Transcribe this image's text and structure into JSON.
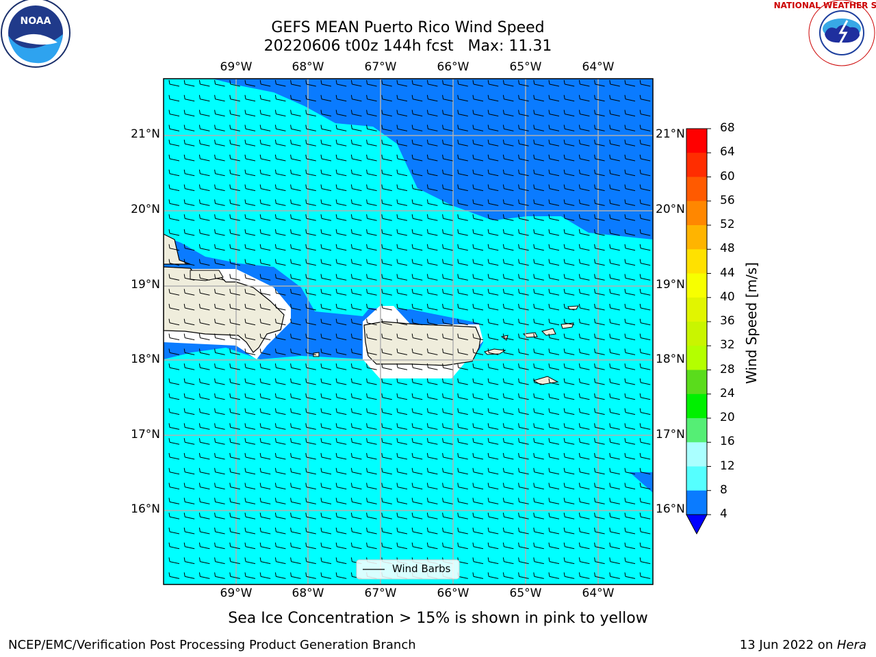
{
  "title": {
    "line1": "GEFS MEAN Puerto Rico Wind Speed",
    "line2": "20220606 t00z 144h fcst   Max: 11.31"
  },
  "map": {
    "lon_labels": [
      "69°W",
      "68°W",
      "67°W",
      "66°W",
      "65°W",
      "64°W"
    ],
    "lat_labels": [
      "21°N",
      "20°N",
      "19°N",
      "18°N",
      "17°N",
      "16°N"
    ],
    "legend_label": "Wind Barbs",
    "colors": {
      "ocean_light": "#00ffff",
      "ocean_dark": "#0a7bff",
      "land": "#efeddc",
      "mask": "#ffffff"
    }
  },
  "colorbar": {
    "title": "Wind Speed [m/s]",
    "ticks": [
      "68",
      "64",
      "60",
      "56",
      "52",
      "48",
      "44",
      "40",
      "36",
      "32",
      "28",
      "24",
      "20",
      "16",
      "12",
      "8",
      "4"
    ],
    "colors": [
      "#ff0000",
      "#ff2d00",
      "#ff5a00",
      "#ff8700",
      "#ffb400",
      "#ffe100",
      "#f7ff00",
      "#e1f500",
      "#c9f500",
      "#b4ff00",
      "#5adc1c",
      "#00f000",
      "#55ee75",
      "#aaffff",
      "#55ffff",
      "#00ffff",
      "#0a7bff"
    ],
    "under_color": "#0000ff"
  },
  "note": "Sea Ice Concentration > 15% is shown in pink to yellow",
  "footer": {
    "left": "NCEP/EMC/Verification Post Processing Product Generation Branch",
    "right_date": "13 Jun 2022 on ",
    "right_host": "Hera"
  },
  "logos": {
    "left": "NOAA",
    "right": "NATIONAL WEATHER SERVICE"
  }
}
